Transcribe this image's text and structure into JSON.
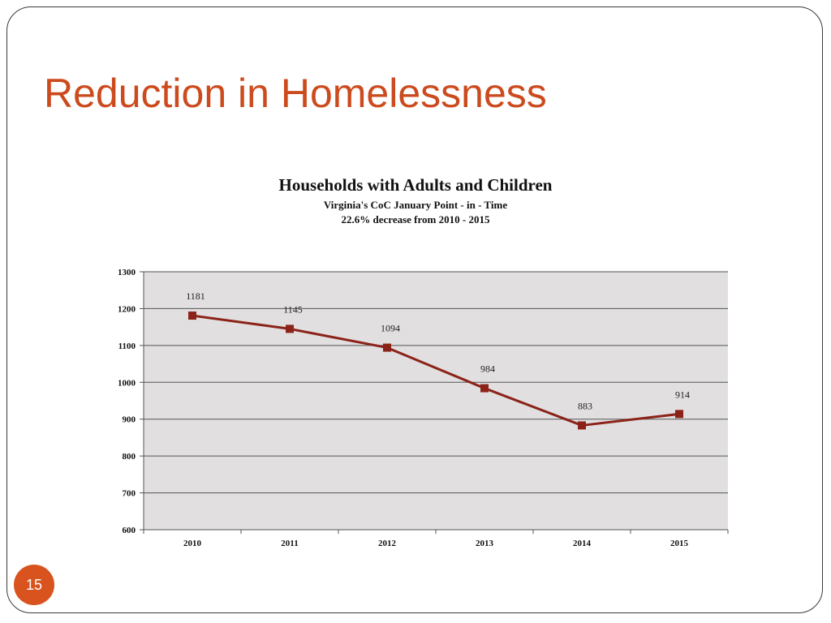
{
  "slide": {
    "title": "Reduction in Homelessness",
    "page_number": "15",
    "accent_color": "#cc4b1e"
  },
  "chart_data": {
    "type": "line",
    "title": "Households with Adults and Children",
    "subtitle": [
      "Virginia's CoC January Point - in - Time",
      "22.6% decrease from 2010 - 2015"
    ],
    "categories": [
      "2010",
      "2011",
      "2012",
      "2013",
      "2014",
      "2015"
    ],
    "series": [
      {
        "values": [
          1181,
          1145,
          1094,
          984,
          883,
          914
        ],
        "color": "#8b2318"
      }
    ],
    "data_labels": [
      "1181",
      "1145",
      "1094",
      "984",
      "883",
      "914"
    ],
    "ylim": [
      600,
      1300
    ],
    "yticks": [
      600,
      700,
      800,
      900,
      1000,
      1100,
      1200,
      1300
    ],
    "grid": true,
    "plot_background": "#e1dfe0",
    "marker": "square"
  }
}
